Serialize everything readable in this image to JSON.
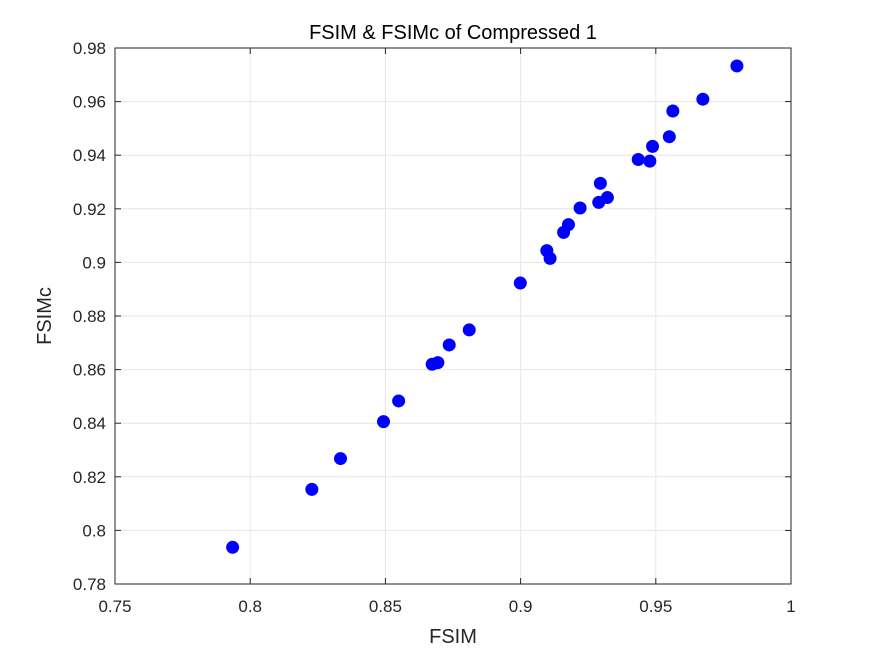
{
  "chart_data": {
    "type": "scatter",
    "title": "FSIM & FSIMc of Compressed 1",
    "xlabel": "FSIM",
    "ylabel": "FSIMc",
    "xlim": [
      0.75,
      1
    ],
    "ylim": [
      0.78,
      0.98
    ],
    "xticks": [
      "0.75",
      "0.8",
      "0.85",
      "0.9",
      "0.95",
      "1"
    ],
    "yticks": [
      "0.78",
      "0.8",
      "0.82",
      "0.84",
      "0.86",
      "0.88",
      "0.9",
      "0.92",
      "0.94",
      "0.96",
      "0.98"
    ],
    "grid": true,
    "marker_color": "#0000ff",
    "points": [
      {
        "x": 0.7935,
        "y": 0.7937
      },
      {
        "x": 0.8228,
        "y": 0.8153
      },
      {
        "x": 0.8334,
        "y": 0.8268
      },
      {
        "x": 0.8493,
        "y": 0.8406
      },
      {
        "x": 0.8549,
        "y": 0.8483
      },
      {
        "x": 0.8673,
        "y": 0.862
      },
      {
        "x": 0.8694,
        "y": 0.8626
      },
      {
        "x": 0.8736,
        "y": 0.8692
      },
      {
        "x": 0.881,
        "y": 0.8748
      },
      {
        "x": 0.8999,
        "y": 0.8923
      },
      {
        "x": 0.9097,
        "y": 0.9044
      },
      {
        "x": 0.9109,
        "y": 0.9015
      },
      {
        "x": 0.9159,
        "y": 0.9112
      },
      {
        "x": 0.9177,
        "y": 0.9141
      },
      {
        "x": 0.922,
        "y": 0.9203
      },
      {
        "x": 0.9289,
        "y": 0.9224
      },
      {
        "x": 0.9295,
        "y": 0.9295
      },
      {
        "x": 0.9321,
        "y": 0.9242
      },
      {
        "x": 0.9435,
        "y": 0.9384
      },
      {
        "x": 0.9478,
        "y": 0.9378
      },
      {
        "x": 0.9488,
        "y": 0.9433
      },
      {
        "x": 0.955,
        "y": 0.9469
      },
      {
        "x": 0.9563,
        "y": 0.9565
      },
      {
        "x": 0.9674,
        "y": 0.9609
      },
      {
        "x": 0.98,
        "y": 0.9733
      }
    ]
  }
}
